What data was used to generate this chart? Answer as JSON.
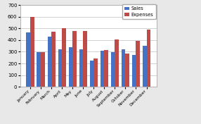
{
  "months": [
    "January",
    "February",
    "March",
    "April",
    "May",
    "June",
    "July",
    "August",
    "September",
    "October",
    "November",
    "December"
  ],
  "sales": [
    465,
    295,
    430,
    320,
    340,
    320,
    225,
    310,
    295,
    320,
    275,
    350
  ],
  "expenses": [
    600,
    295,
    470,
    500,
    475,
    475,
    245,
    315,
    405,
    285,
    390,
    490
  ],
  "sales_color": "#4472C4",
  "expenses_color": "#BE4B48",
  "ylim": [
    0,
    700
  ],
  "yticks": [
    0,
    100,
    200,
    300,
    400,
    500,
    600,
    700
  ],
  "legend_labels": [
    "Sales",
    "Expenses"
  ],
  "outer_bg_color": "#E8E8E8",
  "plot_bg_color": "#FFFFFF",
  "grid_color": "#BEBEBE",
  "figsize": [
    2.86,
    1.76
  ],
  "dpi": 100
}
